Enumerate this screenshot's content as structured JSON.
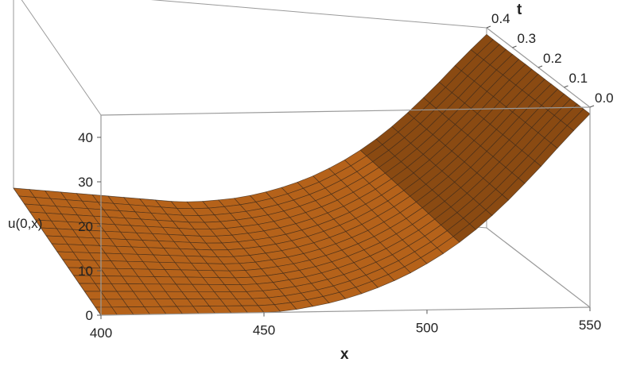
{
  "chart_data": {
    "type": "surface3d",
    "title": "",
    "x_axis": {
      "label": "x",
      "range": [
        400,
        550
      ],
      "ticks": [
        "400",
        "450",
        "500",
        "550"
      ]
    },
    "t_axis": {
      "label": "t",
      "range": [
        0.0,
        0.4
      ],
      "ticks": [
        "0.0",
        "0.1",
        "0.2",
        "0.3",
        "0.4"
      ]
    },
    "z_axis": {
      "label": "u(0,x)",
      "range": [
        0,
        45
      ],
      "ticks": [
        "0",
        "10",
        "20",
        "30",
        "40"
      ]
    },
    "surface": {
      "description_of_shape": "u independent of t; flat ~0 for x<=~450, rises to ~43 at x=550",
      "x_grid": [
        400,
        405,
        410,
        415,
        420,
        425,
        430,
        435,
        440,
        445,
        450,
        455,
        460,
        465,
        470,
        475,
        480,
        485,
        490,
        495,
        500,
        505,
        510,
        515,
        520,
        525,
        530,
        535,
        540,
        545,
        550
      ],
      "u_values": [
        0,
        0,
        0,
        0,
        0,
        0,
        0,
        0,
        0,
        0,
        0,
        0.2,
        0.6,
        1.2,
        1.9,
        2.8,
        3.9,
        5.2,
        6.7,
        8.4,
        10.4,
        12.6,
        15.1,
        17.9,
        21.0,
        24.4,
        28.1,
        31.9,
        35.9,
        39.8,
        43.5
      ],
      "t_grid": [
        0,
        0.025,
        0.05,
        0.075,
        0.1,
        0.125,
        0.15,
        0.175,
        0.2,
        0.225,
        0.25,
        0.275,
        0.3,
        0.325,
        0.35,
        0.375,
        0.4
      ]
    },
    "colors": {
      "surface": "#b5621a",
      "surface_dark": "#8a4a12",
      "mesh": "#3d2a1a",
      "box": "#9a9a9a"
    },
    "grid": false,
    "legend": "none"
  }
}
